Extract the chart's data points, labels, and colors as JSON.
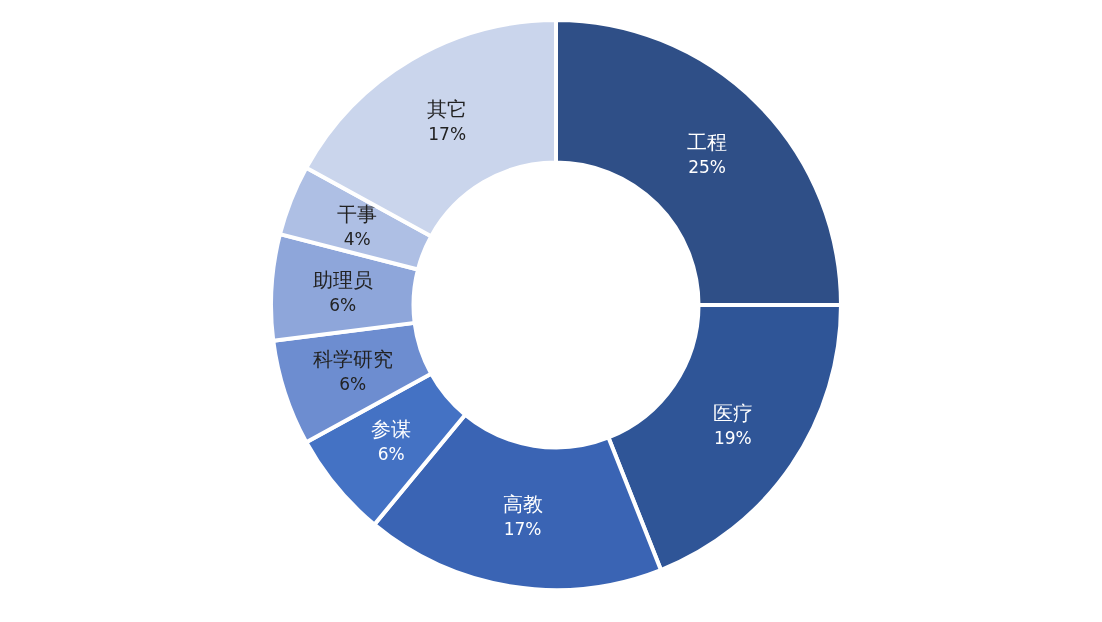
{
  "chart_data": {
    "type": "donut",
    "categories": [
      "工程",
      "医疗",
      "高教",
      "参谋",
      "科学研究",
      "助理员",
      "干事",
      "其它"
    ],
    "values": [
      25,
      19,
      17,
      6,
      6,
      6,
      4,
      17
    ],
    "colors": [
      "#2f4f87",
      "#2f5597",
      "#3a64b4",
      "#4472c4",
      "#6d8dd0",
      "#8ea6da",
      "#aebfe4",
      "#cad5ec"
    ],
    "value_labels": [
      "25%",
      "19%",
      "17%",
      "6%",
      "6%",
      "6%",
      "4%",
      "17%"
    ],
    "legend": false
  }
}
